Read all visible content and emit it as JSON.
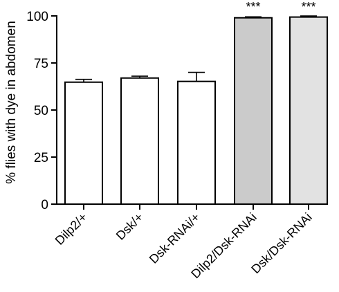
{
  "chart_data": {
    "type": "bar",
    "title": "",
    "xlabel": "",
    "ylabel": "% flies with dye in abdomen",
    "ylim": [
      0,
      100
    ],
    "yticks": [
      0,
      25,
      50,
      75,
      100
    ],
    "categories": [
      "Dilp2/+",
      "Dsk/+",
      "Dsk-RNAi/+",
      "Dilp2/Dsk-RNAi",
      "Dsk/Dsk-RNAi"
    ],
    "values": [
      64.8,
      67.0,
      65.2,
      99.0,
      99.4
    ],
    "errors": [
      1.5,
      1.0,
      4.8,
      0.5,
      0.6
    ],
    "significance": [
      "",
      "",
      "",
      "***",
      "***"
    ],
    "bar_colors": [
      "#ffffff",
      "#ffffff",
      "#ffffff",
      "#cbcbcb",
      "#e2e2e2"
    ],
    "grid": false,
    "legend": "none"
  }
}
